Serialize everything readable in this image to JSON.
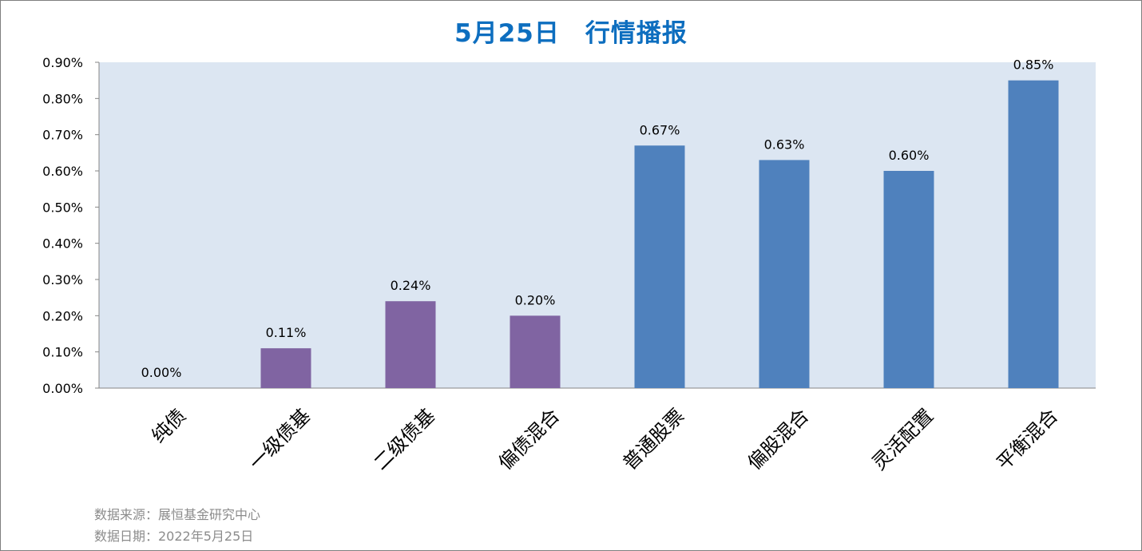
{
  "chart_data": {
    "type": "bar",
    "title": "5月25日　行情播报",
    "categories": [
      "纯债",
      "一级债基",
      "二级债基",
      "偏债混合",
      "普通股票",
      "偏股混合",
      "灵活配置",
      "平衡混合"
    ],
    "values": [
      0.0,
      0.11,
      0.24,
      0.2,
      0.67,
      0.63,
      0.6,
      0.85
    ],
    "value_labels": [
      "0.00%",
      "0.11%",
      "0.24%",
      "0.20%",
      "0.67%",
      "0.63%",
      "0.60%",
      "0.85%"
    ],
    "bar_colors": [
      "#8064a2",
      "#8064a2",
      "#8064a2",
      "#8064a2",
      "#4f81bd",
      "#4f81bd",
      "#4f81bd",
      "#4f81bd"
    ],
    "ylim": [
      0,
      0.9
    ],
    "yticks": [
      "0.00%",
      "0.10%",
      "0.20%",
      "0.30%",
      "0.40%",
      "0.50%",
      "0.60%",
      "0.70%",
      "0.80%",
      "0.90%"
    ],
    "xlabel": "",
    "ylabel": "",
    "plot_background": "#dce6f2",
    "grid": false,
    "legend": "none"
  },
  "footer": {
    "source": "数据来源：展恒基金研究中心",
    "date": "数据日期：2022年5月25日"
  }
}
